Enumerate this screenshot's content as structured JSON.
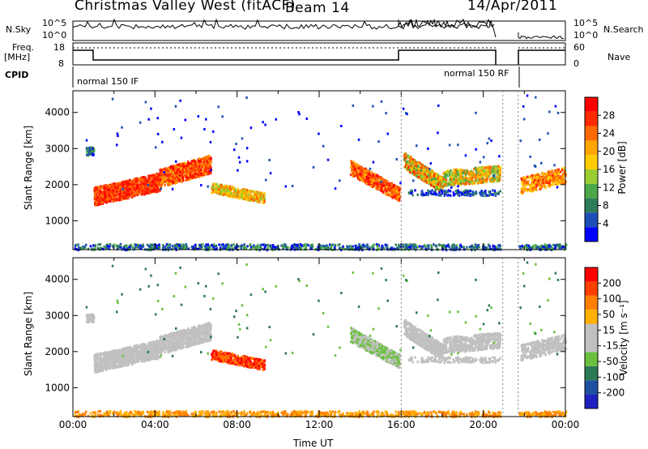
{
  "header": {
    "title": "Christmas Valley West (fitACF)",
    "beam": "Beam 14",
    "date": "14/Apr/2011"
  },
  "top_panels": {
    "nsky_label": "N.Sky",
    "nsearch_label": "N.Search",
    "noise_ticks": [
      "10^5",
      "10^0"
    ],
    "freq_label_1": "Freq.",
    "freq_label_2": "[MHz]",
    "freq_ticks": [
      "18",
      "8"
    ],
    "nave_ticks": [
      "60",
      "0"
    ],
    "nave_label": "Nave",
    "cpid_label": "CPID",
    "cpid_1": "normal 150 IF",
    "cpid_2": "normal 150 RF"
  },
  "chart_data": [
    {
      "type": "heatmap",
      "name": "power",
      "ylabel": "Slant Range [km]",
      "yticks": [
        1000,
        2000,
        3000,
        4000
      ],
      "ylim": [
        200,
        4600
      ],
      "colorbar_label": "Power [dB]",
      "colorbar_ticks": [
        "28",
        "24",
        "20",
        "16",
        "12",
        "8",
        "4"
      ],
      "colors": [
        "#0000ff",
        "#1d4fb8",
        "#2e7d5a",
        "#4aa84a",
        "#9acd32",
        "#ffcc00",
        "#ffa500",
        "#ff6a00",
        "#ff2a00",
        "#ff0000"
      ]
    },
    {
      "type": "heatmap",
      "name": "velocity",
      "ylabel": "Slant Range [km]",
      "yticks": [
        1000,
        2000,
        3000,
        4000
      ],
      "ylim": [
        200,
        4600
      ],
      "colorbar_label": "Velocity [m s⁻¹]",
      "colorbar_ticks": [
        "200",
        "100",
        "50",
        "15",
        "-15",
        "-50",
        "-100",
        "-200"
      ],
      "colors": [
        "#2020c0",
        "#1f4fa0",
        "#2a7a55",
        "#6cc040",
        "#c0c0c0",
        "#c0c0c0",
        "#ffb000",
        "#ff8000",
        "#ff4000",
        "#ff0000"
      ],
      "xlabel": "Time UT",
      "xticks": [
        "00:00",
        "04:00",
        "08:00",
        "12:00",
        "16:00",
        "20:00",
        "00:00"
      ]
    }
  ]
}
